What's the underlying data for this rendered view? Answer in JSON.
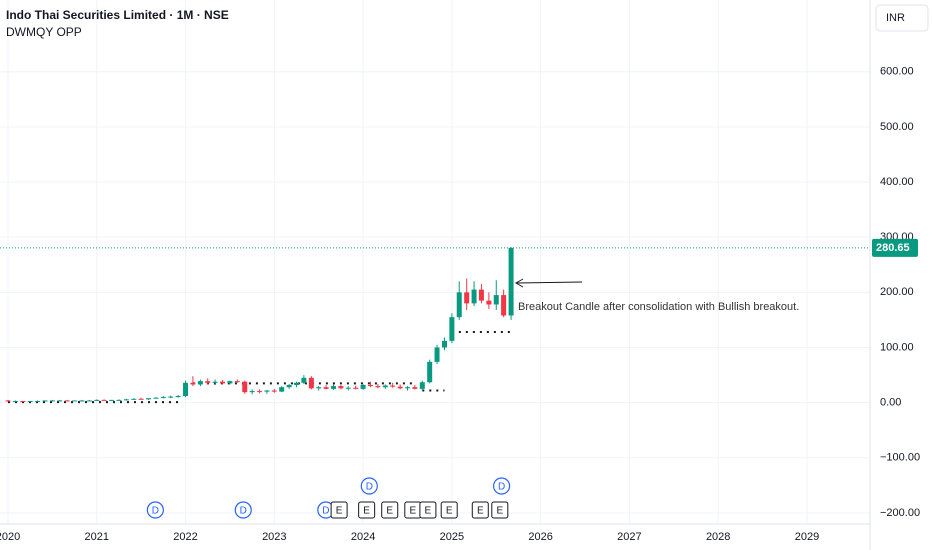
{
  "chart_data": {
    "type": "candlestick",
    "title": "Indo Thai Securities Limited · 1M · NSE",
    "subtitle": "DWMQY OPP",
    "currency": "INR",
    "up_color": "#089981",
    "down_color": "#f23645",
    "x": [
      2020.0,
      2020.083,
      2020.167,
      2020.25,
      2020.333,
      2020.417,
      2020.5,
      2020.583,
      2020.667,
      2020.75,
      2020.833,
      2020.917,
      2021.0,
      2021.083,
      2021.167,
      2021.25,
      2021.333,
      2021.417,
      2021.5,
      2021.583,
      2021.667,
      2021.75,
      2021.833,
      2021.917,
      2022.0,
      2022.083,
      2022.167,
      2022.25,
      2022.333,
      2022.417,
      2022.5,
      2022.583,
      2022.667,
      2022.75,
      2022.833,
      2022.917,
      2023.0,
      2023.083,
      2023.167,
      2023.25,
      2023.333,
      2023.417,
      2023.5,
      2023.583,
      2023.667,
      2023.75,
      2023.833,
      2023.917,
      2024.0,
      2024.083,
      2024.167,
      2024.25,
      2024.333,
      2024.417,
      2024.5,
      2024.583,
      2024.667,
      2024.75,
      2024.833,
      2024.917,
      2025.0,
      2025.083,
      2025.167,
      2025.25,
      2025.333,
      2025.417,
      2025.5,
      2025.583,
      2025.667
    ],
    "ohlc": [
      [
        4,
        5,
        2,
        3
      ],
      [
        3,
        4,
        2,
        3
      ],
      [
        3,
        3,
        1,
        2
      ],
      [
        2,
        3,
        1,
        3
      ],
      [
        3,
        4,
        2,
        3
      ],
      [
        3,
        4,
        3,
        4
      ],
      [
        4,
        5,
        3,
        4
      ],
      [
        4,
        5,
        3,
        4
      ],
      [
        4,
        5,
        3,
        3
      ],
      [
        3,
        4,
        3,
        4
      ],
      [
        4,
        5,
        3,
        4
      ],
      [
        4,
        5,
        3,
        4
      ],
      [
        4,
        6,
        3,
        5
      ],
      [
        5,
        6,
        4,
        4
      ],
      [
        4,
        5,
        3,
        5
      ],
      [
        5,
        6,
        4,
        5
      ],
      [
        5,
        7,
        4,
        6
      ],
      [
        6,
        8,
        5,
        7
      ],
      [
        7,
        9,
        6,
        6
      ],
      [
        6,
        8,
        5,
        8
      ],
      [
        8,
        10,
        7,
        9
      ],
      [
        9,
        12,
        8,
        10
      ],
      [
        10,
        13,
        8,
        11
      ],
      [
        11,
        14,
        9,
        12
      ],
      [
        12,
        40,
        10,
        36
      ],
      [
        36,
        48,
        30,
        33
      ],
      [
        33,
        42,
        30,
        39
      ],
      [
        39,
        44,
        33,
        36
      ],
      [
        36,
        42,
        32,
        38
      ],
      [
        38,
        41,
        34,
        35
      ],
      [
        35,
        40,
        33,
        39
      ],
      [
        39,
        42,
        36,
        38
      ],
      [
        38,
        40,
        16,
        19
      ],
      [
        19,
        24,
        15,
        21
      ],
      [
        21,
        24,
        17,
        20
      ],
      [
        20,
        23,
        16,
        22
      ],
      [
        22,
        25,
        18,
        20
      ],
      [
        20,
        30,
        19,
        28
      ],
      [
        28,
        34,
        25,
        32
      ],
      [
        32,
        38,
        28,
        36
      ],
      [
        36,
        50,
        34,
        45
      ],
      [
        45,
        48,
        24,
        26
      ],
      [
        26,
        30,
        22,
        28
      ],
      [
        28,
        32,
        24,
        25
      ],
      [
        25,
        33,
        23,
        30
      ],
      [
        30,
        32,
        24,
        26
      ],
      [
        26,
        30,
        22,
        27
      ],
      [
        27,
        31,
        24,
        25
      ],
      [
        25,
        34,
        23,
        32
      ],
      [
        32,
        38,
        28,
        30
      ],
      [
        30,
        34,
        26,
        28
      ],
      [
        28,
        33,
        25,
        31
      ],
      [
        31,
        36,
        27,
        29
      ],
      [
        29,
        33,
        24,
        26
      ],
      [
        26,
        30,
        22,
        28
      ],
      [
        28,
        32,
        24,
        25
      ],
      [
        25,
        40,
        22,
        37
      ],
      [
        37,
        78,
        35,
        74
      ],
      [
        74,
        105,
        70,
        100
      ],
      [
        100,
        118,
        95,
        112
      ],
      [
        112,
        162,
        108,
        155
      ],
      [
        155,
        220,
        150,
        200
      ],
      [
        200,
        225,
        168,
        180
      ],
      [
        180,
        220,
        175,
        205
      ],
      [
        205,
        215,
        180,
        185
      ],
      [
        185,
        200,
        170,
        178
      ],
      [
        178,
        222,
        168,
        195
      ],
      [
        195,
        205,
        155,
        158
      ],
      [
        158,
        282,
        150,
        280.65
      ]
    ],
    "indicator_levels": [
      {
        "x": [
          2020.0,
          2021.917
        ],
        "value": 1
      },
      {
        "x": [
          2022.083,
          2024.583
        ],
        "value": 35
      },
      {
        "x": [
          2024.667,
          2024.917
        ],
        "value": 22
      },
      {
        "x": [
          2025.0,
          2025.667
        ],
        "value": 128
      }
    ],
    "events": [
      {
        "x": 2021.66,
        "label": "D"
      },
      {
        "x": 2022.65,
        "label": "D"
      },
      {
        "x": 2023.58,
        "label": "D"
      },
      {
        "x": 2024.07,
        "label": "D"
      },
      {
        "x": 2025.56,
        "label": "D"
      },
      {
        "x": 2023.73,
        "label": "E"
      },
      {
        "x": 2024.04,
        "label": "E"
      },
      {
        "x": 2024.3,
        "label": "E"
      },
      {
        "x": 2024.56,
        "label": "E"
      },
      {
        "x": 2024.73,
        "label": "E"
      },
      {
        "x": 2024.97,
        "label": "E"
      },
      {
        "x": 2025.32,
        "label": "E"
      },
      {
        "x": 2025.54,
        "label": "E"
      }
    ],
    "annotation": "Breakout Candle after consolidation with Bullish breakout.",
    "xlim": [
      2019.91,
      2029.71
    ],
    "xticks": [
      2020,
      2021,
      2022,
      2023,
      2024,
      2025,
      2026,
      2027,
      2028,
      2029
    ],
    "ylim": [
      -220,
      730
    ],
    "yticks": [
      {
        "value": 600,
        "label": "600.00"
      },
      {
        "value": 500,
        "label": "500.00"
      },
      {
        "value": 400,
        "label": "400.00"
      },
      {
        "value": 300,
        "label": "300.00"
      },
      {
        "value": 200,
        "label": "200.00"
      },
      {
        "value": 100,
        "label": "100.00"
      },
      {
        "value": 0,
        "label": "0.00"
      },
      {
        "value": -100,
        "label": "−100.00"
      },
      {
        "value": -200,
        "label": "−200.00"
      }
    ],
    "grid": true
  }
}
